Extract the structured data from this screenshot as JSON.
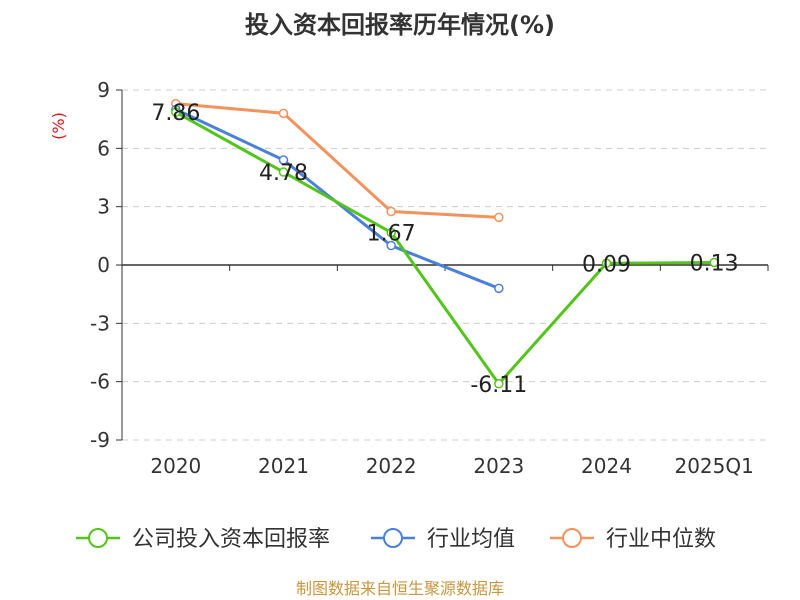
{
  "chart_data": {
    "type": "line",
    "title": "投入资本回报率历年情况(%)",
    "ylabel": "(%)",
    "xlabel": "",
    "categories": [
      "2020",
      "2021",
      "2022",
      "2023",
      "2024",
      "2025Q1"
    ],
    "ylim": [
      -9,
      9
    ],
    "yticks": [
      9,
      6,
      3,
      0,
      -3,
      -6,
      -9
    ],
    "grid": true,
    "legend_position": "bottom",
    "series": [
      {
        "name": "公司投入资本回报率",
        "color": "#52c41a",
        "values": [
          7.86,
          4.78,
          1.67,
          -6.11,
          0.09,
          0.13
        ],
        "labels": [
          "7.86",
          "4.78",
          "1.67",
          "-6.11",
          "0.09",
          "0.13"
        ]
      },
      {
        "name": "行业均值",
        "color": "#4a7fdc",
        "values": [
          8.0,
          5.4,
          1.0,
          -1.2,
          null,
          null
        ]
      },
      {
        "name": "行业中位数",
        "color": "#f5915a",
        "values": [
          8.3,
          7.8,
          2.75,
          2.45,
          null,
          null
        ]
      }
    ]
  },
  "source": "制图数据来自恒生聚源数据库"
}
